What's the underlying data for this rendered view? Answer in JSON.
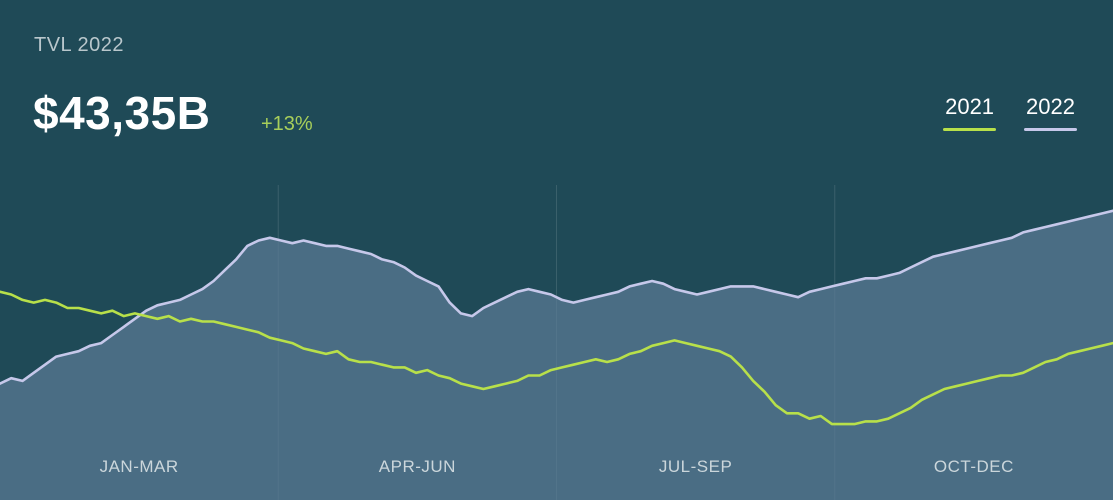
{
  "chart_data": {
    "type": "area",
    "title": "$43,35B",
    "subtitle": "TVL 2022",
    "change": "+13%",
    "categories": [
      "JAN-MAR",
      "APR-JUN",
      "JUL-SEP",
      "OCT-DEC"
    ],
    "x": [
      0,
      0.04,
      0.08,
      0.12,
      0.16,
      0.2,
      0.24,
      0.28,
      0.32,
      0.36,
      0.4,
      0.44,
      0.48,
      0.52,
      0.56,
      0.6,
      0.64,
      0.68,
      0.72,
      0.76,
      0.8,
      0.84,
      0.88,
      0.92,
      0.96,
      1.0,
      1.04,
      1.08,
      1.12,
      1.16,
      1.2,
      1.24,
      1.28,
      1.32,
      1.36,
      1.4,
      1.44,
      1.48,
      1.52,
      1.56,
      1.6,
      1.64,
      1.68,
      1.72,
      1.76,
      1.8,
      1.84,
      1.88,
      1.92,
      1.96,
      2.0,
      2.04,
      2.08,
      2.12,
      2.16,
      2.2,
      2.24,
      2.28,
      2.32,
      2.36,
      2.4,
      2.44,
      2.48,
      2.52,
      2.56,
      2.6,
      2.64,
      2.68,
      2.72,
      2.76,
      2.8,
      2.84,
      2.88,
      2.92,
      2.96,
      3.0,
      3.04,
      3.08,
      3.12,
      3.16,
      3.2,
      3.24,
      3.28,
      3.32,
      3.36,
      3.4,
      3.44,
      3.48,
      3.52,
      3.56,
      3.6,
      3.64,
      3.68,
      3.72,
      3.76,
      3.8,
      3.84,
      3.88,
      3.92,
      3.96
    ],
    "series": [
      {
        "name": "2021",
        "color": "#b8e04a",
        "values": [
          66,
          65,
          63,
          62,
          63,
          62,
          60,
          60,
          59,
          58,
          59,
          57,
          58,
          57,
          56,
          57,
          55,
          56,
          55,
          55,
          54,
          53,
          52,
          51,
          49,
          48,
          47,
          45,
          44,
          43,
          44,
          41,
          40,
          40,
          39,
          38,
          38,
          36,
          37,
          35,
          34,
          32,
          31,
          30,
          31,
          32,
          33,
          35,
          35,
          37,
          38,
          39,
          40,
          41,
          40,
          41,
          43,
          44,
          46,
          47,
          48,
          47,
          46,
          45,
          44,
          42,
          38,
          33,
          29,
          24,
          21,
          21,
          19,
          20,
          17,
          17,
          17,
          18,
          18,
          19,
          21,
          23,
          26,
          28,
          30,
          31,
          32,
          33,
          34,
          35,
          35,
          36,
          38,
          40,
          41,
          43,
          44,
          45,
          46,
          47
        ]
      },
      {
        "name": "2022",
        "color": "#c6c8ea",
        "values": [
          32,
          34,
          33,
          36,
          39,
          42,
          43,
          44,
          46,
          47,
          50,
          53,
          56,
          59,
          61,
          62,
          63,
          65,
          67,
          70,
          74,
          78,
          83,
          85,
          86,
          85,
          84,
          85,
          84,
          83,
          83,
          82,
          81,
          80,
          78,
          77,
          75,
          72,
          70,
          68,
          62,
          58,
          57,
          60,
          62,
          64,
          66,
          67,
          66,
          65,
          63,
          62,
          63,
          64,
          65,
          66,
          68,
          69,
          70,
          69,
          67,
          66,
          65,
          66,
          67,
          68,
          68,
          68,
          67,
          66,
          65,
          64,
          66,
          67,
          68,
          69,
          70,
          71,
          71,
          72,
          73,
          75,
          77,
          79,
          80,
          81,
          82,
          83,
          84,
          85,
          86,
          88,
          89,
          90,
          91,
          92,
          93,
          94,
          95,
          96
        ]
      }
    ],
    "ylim": [
      0,
      100
    ],
    "grid": true,
    "legend": "top-right"
  }
}
